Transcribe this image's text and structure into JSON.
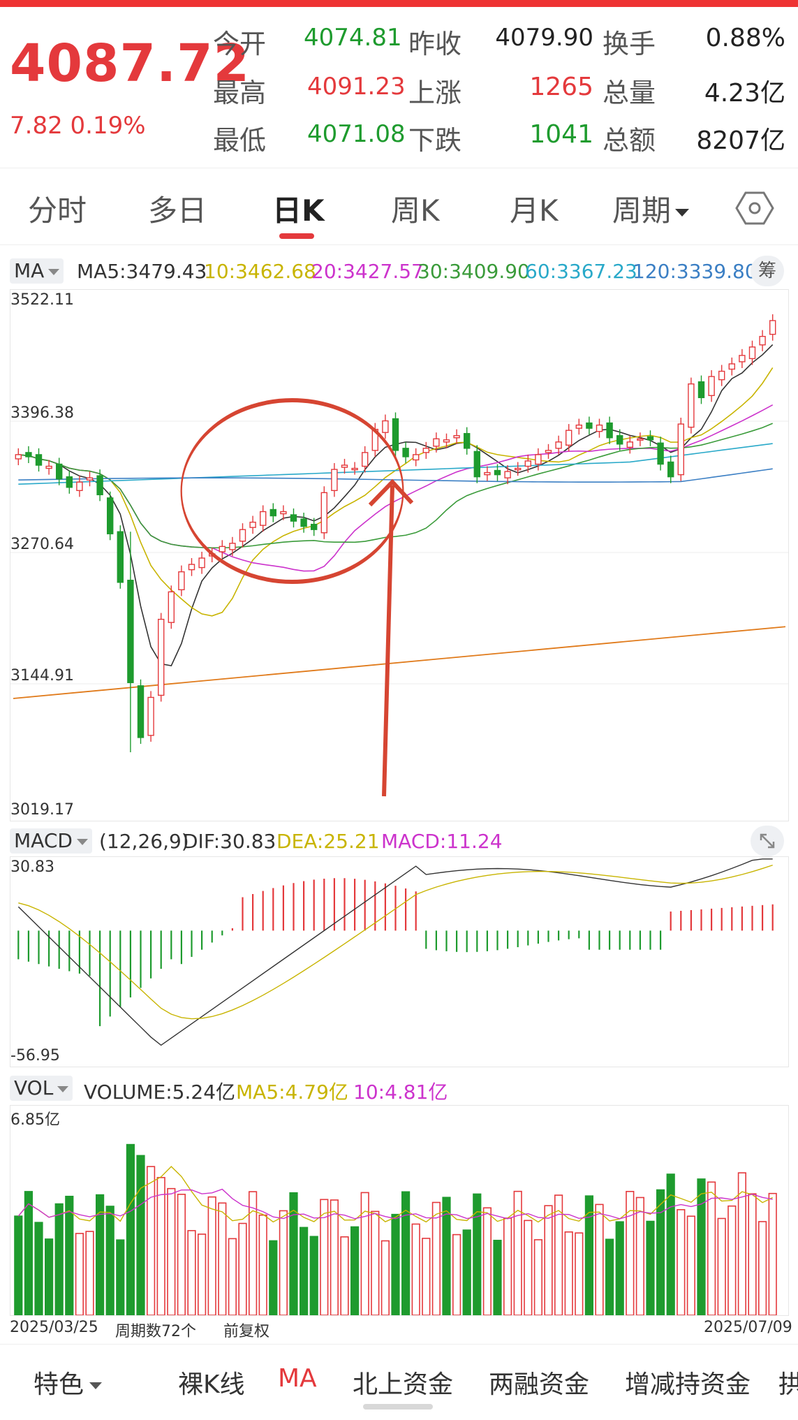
{
  "quote": {
    "price": "4087.72",
    "change": "7.82 0.19%",
    "rows": [
      {
        "l1": "今开",
        "v1": "4074.81",
        "l2": "昨收",
        "v2": "4079.90",
        "l3": "换手",
        "v3": "0.88%"
      },
      {
        "l1": "最高",
        "v1": "4091.23",
        "l2": "上涨",
        "v2": "1265",
        "l3": "总量",
        "v3": "4.23亿"
      },
      {
        "l1": "最低",
        "v1": "4071.08",
        "l2": "下跌",
        "v2": "1041",
        "l3": "总额",
        "v3": "8207亿"
      }
    ]
  },
  "tabs": [
    "分时",
    "多日",
    "日K",
    "周K",
    "月K",
    "周期"
  ],
  "ma_bar": {
    "chip": "MA",
    "ma5": "MA5:3479.43",
    "ma10": "10:3462.68",
    "ma20": "20:3427.57",
    "ma30": "30:3409.90",
    "ma60": "60:3367.23",
    "ma120": "120:3339.80",
    "chou": "筹"
  },
  "kline_axis": [
    "3522.11",
    "3396.38",
    "3270.64",
    "3144.91",
    "3019.17"
  ],
  "macd_bar": {
    "chip": "MACD",
    "params": "(12,26,9)",
    "dif": "DIF:30.83",
    "dea": "DEA:25.21",
    "macd": "MACD:11.24",
    "top": "30.83",
    "bottom": "-56.95"
  },
  "vol_bar": {
    "chip": "VOL",
    "volume": "VOLUME:5.24亿",
    "ma5": "MA5:4.79亿",
    "ma10": "10:4.81亿",
    "top": "6.85亿"
  },
  "footer_axis": {
    "start": "2025/03/25",
    "count": "周期数72个",
    "adj": "前复权",
    "end": "2025/07/09"
  },
  "bottom_menu": [
    "特色",
    "裸K线",
    "MA",
    "北上资金",
    "两融资金",
    "增减持资金",
    "拱"
  ],
  "colors": {
    "up": "#e4393c",
    "down": "#1e9b2e",
    "ma5": "#333333",
    "ma10": "#c8b400",
    "ma20": "#cc33cc",
    "ma30": "#3a9b3a",
    "ma60": "#29a9c9",
    "ma120": "#3b7fc4",
    "long_ma": "#e07a1a",
    "annotation": "#d64532"
  }
}
